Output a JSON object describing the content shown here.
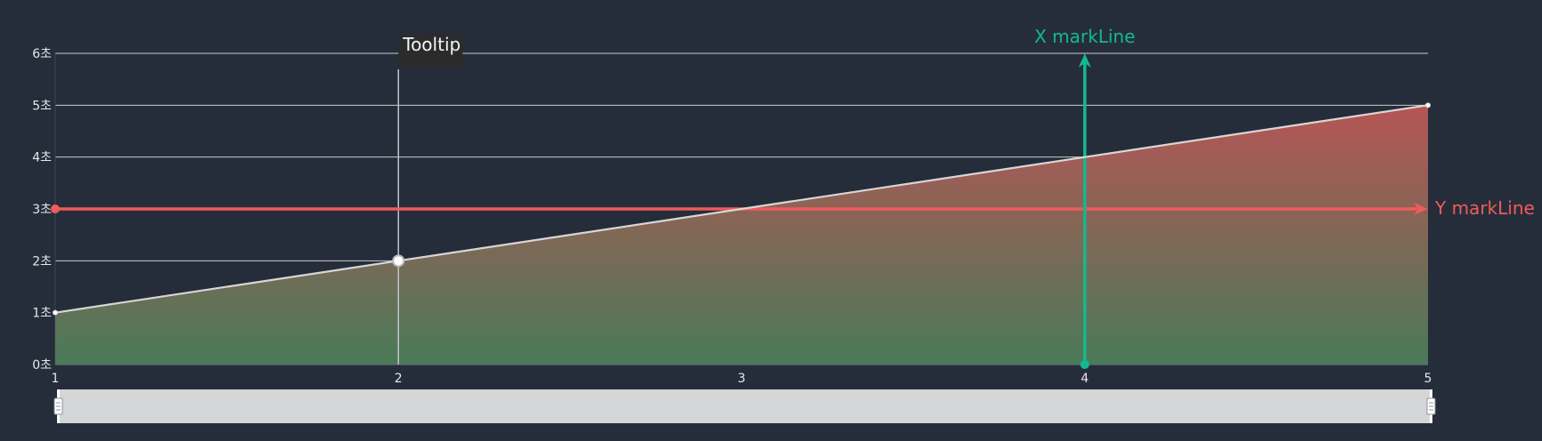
{
  "chart_data": {
    "type": "area",
    "x": [
      1,
      2,
      3,
      4,
      5
    ],
    "series": [
      {
        "values": [
          1,
          2,
          3,
          4,
          5
        ]
      }
    ],
    "xlim": [
      1,
      5
    ],
    "ylim": [
      0,
      6
    ],
    "y_ticks": [
      "0초",
      "1초",
      "2초",
      "3초",
      "4초",
      "5초",
      "6초"
    ],
    "x_ticks": [
      "1",
      "2",
      "3",
      "4",
      "5"
    ],
    "grid": true,
    "area_gradient": {
      "top": "#b65555",
      "bottom": "#4a7a58"
    },
    "line_color": "#d9d6d6",
    "mark_lines": {
      "x": {
        "value": 4,
        "label": "X markLine",
        "color": "#14b88f"
      },
      "y": {
        "value": 3,
        "label": "Y markLine",
        "color": "#f05b5b"
      }
    },
    "tooltip": {
      "x": 2,
      "label": "Tooltip"
    },
    "data_zoom": {
      "start": 1,
      "end": 5
    }
  }
}
